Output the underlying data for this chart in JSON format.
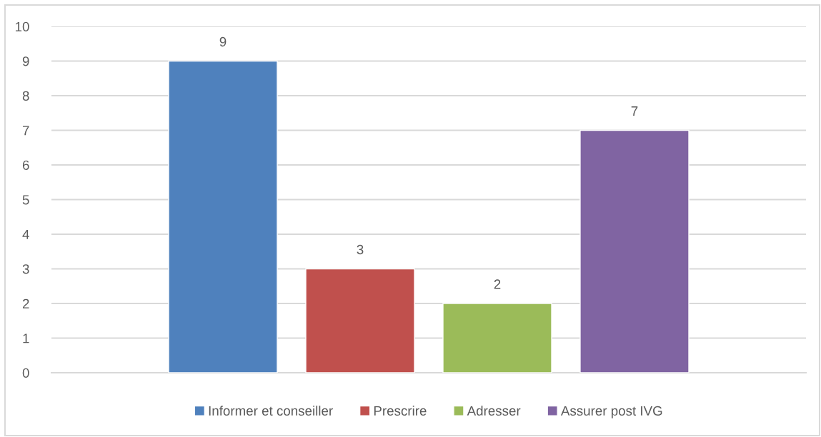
{
  "chart_data": {
    "type": "bar",
    "categories": [
      null
    ],
    "series": [
      {
        "name": "Informer et conseiller",
        "color": "#4f81bd",
        "values": [
          9
        ]
      },
      {
        "name": "Prescrire",
        "color": "#c0504d",
        "values": [
          3
        ]
      },
      {
        "name": "Adresser",
        "color": "#9bbb59",
        "values": [
          2
        ]
      },
      {
        "name": "Assurer post IVG",
        "color": "#8064a2",
        "values": [
          7
        ]
      }
    ],
    "ylim": [
      0,
      10
    ],
    "yticks": [
      0,
      1,
      2,
      3,
      4,
      5,
      6,
      7,
      8,
      9,
      10
    ],
    "grid": "y",
    "legend": "bottom",
    "data_labels": true,
    "tick_labels": "y"
  }
}
